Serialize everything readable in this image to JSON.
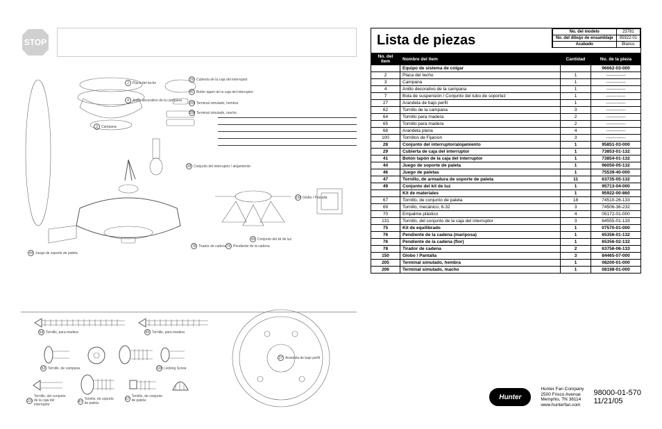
{
  "stop_text": "STOP",
  "title": "Lista de piezas",
  "meta": {
    "model_label": "No. del modelo",
    "model_value": "23781",
    "drawing_label": "No. del dibujo de ensamblaje",
    "drawing_value": "95922-01",
    "finish_label": "Acabado",
    "finish_value": "Blanco"
  },
  "columns": {
    "itemno": "No. del ítem",
    "name": "Nombre del ítem",
    "qty": "Cantidad",
    "partno": "No. de la pieza"
  },
  "rows": [
    {
      "n": "",
      "name": "Equipo de sistema de colgar",
      "q": "",
      "p": "96662-03-000",
      "bold": true
    },
    {
      "n": "2",
      "name": "Placa del techo",
      "q": "1",
      "p": "-------------"
    },
    {
      "n": "3",
      "name": "Campana",
      "q": "1",
      "p": "-------------"
    },
    {
      "n": "4",
      "name": "Anillo decorativo de la campana",
      "q": "1",
      "p": "-------------"
    },
    {
      "n": "7",
      "name": "Bola de suspensión / Conjunto del tubo de soportez",
      "q": "1",
      "p": "-------------"
    },
    {
      "n": "27",
      "name": "Arandela de bajo perfil",
      "q": "1",
      "p": "-------------"
    },
    {
      "n": "62",
      "name": "Tornillo de la campana",
      "q": "3",
      "p": "-------------"
    },
    {
      "n": "64",
      "name": "Tornillo para madera",
      "q": "2",
      "p": "-------------"
    },
    {
      "n": "65",
      "name": "Tornillo para madera",
      "q": "2",
      "p": "-------------"
    },
    {
      "n": "68",
      "name": "Arandela plana",
      "q": "4",
      "p": "-------------"
    },
    {
      "n": "100",
      "name": "Tornillos de Fijacion",
      "q": "3",
      "p": "-------------"
    },
    {
      "n": "28",
      "name": "Conjunto del interruptor/alojamiento",
      "q": "1",
      "p": "95851-03-000",
      "bold": true
    },
    {
      "n": "29",
      "name": "Cubierta de caja del interruptor",
      "q": "1",
      "p": "73853-01-132",
      "bold": true
    },
    {
      "n": "41",
      "name": "Botón tapón de la caja del interruptor",
      "q": "1",
      "p": "73854-01-132",
      "bold": true
    },
    {
      "n": "44",
      "name": "Juego de soporte de paleta",
      "q": "1",
      "p": "96050-05-132",
      "bold": true
    },
    {
      "n": "46",
      "name": "Juego de paletas",
      "q": "1",
      "p": "75539-40-000",
      "bold": true
    },
    {
      "n": "47",
      "name": "Tornillo, de armadura de soporte de paleta",
      "q": "11",
      "p": "63735-05-132",
      "bold": true
    },
    {
      "n": "49",
      "name": "Conjunto del kit de luz",
      "q": "1",
      "p": "95713-04-000",
      "bold": true
    },
    {
      "n": "",
      "name": "Kit de materiales",
      "q": "1",
      "p": "95922-00-860",
      "bold": true
    },
    {
      "n": "67",
      "name": "Tornillo, de conjunto de paleta",
      "q": "18",
      "p": "74510-26-133"
    },
    {
      "n": "69",
      "name": "Tornillo, mecánico, 6-32",
      "q": "3",
      "p": "74506-36-232"
    },
    {
      "n": "70",
      "name": "Empalme plástico",
      "q": "4",
      "p": "05172-01-000"
    },
    {
      "n": "131",
      "name": "Tornillo, del conjunto de la caja del interruptor",
      "q": "3",
      "p": "64555-01-133"
    },
    {
      "n": "75",
      "name": "Kit de equilibrado",
      "q": "1",
      "p": "07570-01-000",
      "bold": true
    },
    {
      "n": "76",
      "name": "Pendiente de la cadena (mariposa)",
      "q": "1",
      "p": "65356-01-132",
      "bold": true
    },
    {
      "n": "76",
      "name": "Pendiente de la cadena (flor)",
      "q": "1",
      "p": "65356-02-132",
      "bold": true
    },
    {
      "n": "78",
      "name": "Tirador de cadena",
      "q": "2",
      "p": "63756-06-133",
      "bold": true
    },
    {
      "n": "150",
      "name": "Globo / Pantalla",
      "q": "3",
      "p": "84465-07-000",
      "bold": true
    },
    {
      "n": "205",
      "name": "Terminal simulado, hembra",
      "q": "1",
      "p": "08200-01-000",
      "bold": true
    },
    {
      "n": "206",
      "name": "Terminal simulado, macho",
      "q": "1",
      "p": "08198-01-000",
      "bold": true
    }
  ],
  "footer": {
    "logo_text": "Hunter",
    "company": "Hunter Fan Company",
    "addr1": "2500 Frisco Avenue",
    "addr2": "Memphis, TN 38114",
    "url": "www.hunterfan.com",
    "docnum": "98000-01-570",
    "date": "11/21/05"
  },
  "labels": {
    "l2": "Placa del techo",
    "l4": "Anillo decorativo de la campana",
    "l3": "Campana",
    "l29": "Cubierta de la caja del interruptor",
    "l41": "Botón tapón de la caja del interruptor",
    "l205": "Terminal simulado, hembra",
    "l206": "Terminal simulado, macho",
    "l28": "Conjunto del interruptor / alojamiento",
    "l150": "Globo / Pantalla",
    "l49": "Conjunto del kit de luz",
    "l78": "Tirador de cadena",
    "l76": "Pendiente de la cadena",
    "l44": "Juego de soporte de paleta",
    "l64": "Tornillo, para madera",
    "l65": "Tornillo, para madera",
    "l62": "Tornillo, de campana",
    "l100": "Locking Screw",
    "l27": "Arandela de bajo perfil",
    "l67": "Tornillo, de conjunto de paleta",
    "l47": "Tornillo, de soporte de paleta",
    "l131": "Tornillo, del conjunto de la caja del interruptor"
  }
}
